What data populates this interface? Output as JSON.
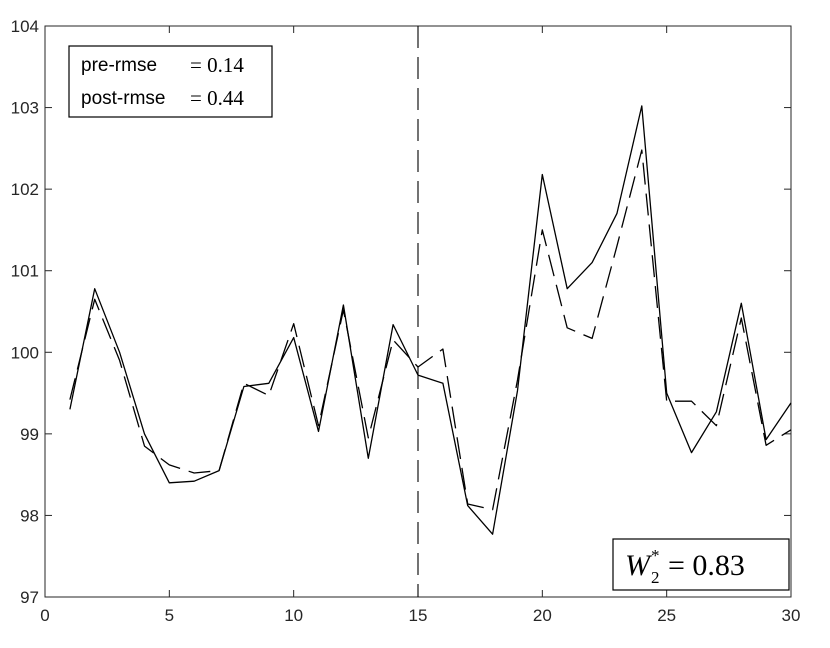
{
  "chart_data": {
    "type": "line",
    "title": "",
    "xlabel": "",
    "ylabel": "",
    "xlim": [
      0,
      30
    ],
    "ylim": [
      97,
      104
    ],
    "xticks": [
      0,
      5,
      10,
      15,
      20,
      25,
      30
    ],
    "yticks": [
      97,
      98,
      99,
      100,
      101,
      102,
      103,
      104
    ],
    "grid": false,
    "vertical_marker_x": 15,
    "series": [
      {
        "style": "solid",
        "x": [
          1,
          2,
          3,
          4,
          5,
          6,
          7,
          8,
          9,
          10,
          11,
          12,
          13,
          14,
          15,
          16,
          17,
          18,
          19,
          20,
          21,
          22,
          23,
          24,
          25,
          26,
          27,
          28,
          29,
          30
        ],
        "y": [
          99.3,
          100.78,
          100.0,
          99.0,
          98.4,
          98.42,
          98.55,
          99.58,
          99.62,
          100.18,
          99.03,
          100.58,
          98.7,
          100.34,
          99.72,
          99.62,
          98.12,
          97.77,
          99.53,
          102.18,
          100.78,
          101.1,
          101.7,
          103.02,
          99.5,
          98.77,
          99.27,
          100.6,
          98.93,
          99.38
        ]
      },
      {
        "style": "dashed",
        "x": [
          1,
          2,
          3,
          4,
          5,
          6,
          7,
          8,
          9,
          10,
          11,
          12,
          13,
          14,
          15,
          16,
          17,
          18,
          19,
          20,
          21,
          22,
          23,
          24,
          25,
          26,
          27,
          28,
          29,
          30
        ],
        "y": [
          99.42,
          100.65,
          99.9,
          98.85,
          98.62,
          98.52,
          98.55,
          99.62,
          99.47,
          100.35,
          99.1,
          100.52,
          98.95,
          100.15,
          99.82,
          100.04,
          98.14,
          98.07,
          99.66,
          101.5,
          100.3,
          100.17,
          101.3,
          102.48,
          99.4,
          99.4,
          99.1,
          100.42,
          98.86,
          99.05
        ]
      }
    ],
    "annotations": {
      "rmse_box": [
        {
          "label": "pre-rmse",
          "math": "= 0.14"
        },
        {
          "label": "post-rmse",
          "math": "= 0.44"
        }
      ],
      "w2_box": {
        "symbol": "W",
        "subscript": "2",
        "superscript": "*",
        "math": "= 0.83"
      }
    }
  }
}
